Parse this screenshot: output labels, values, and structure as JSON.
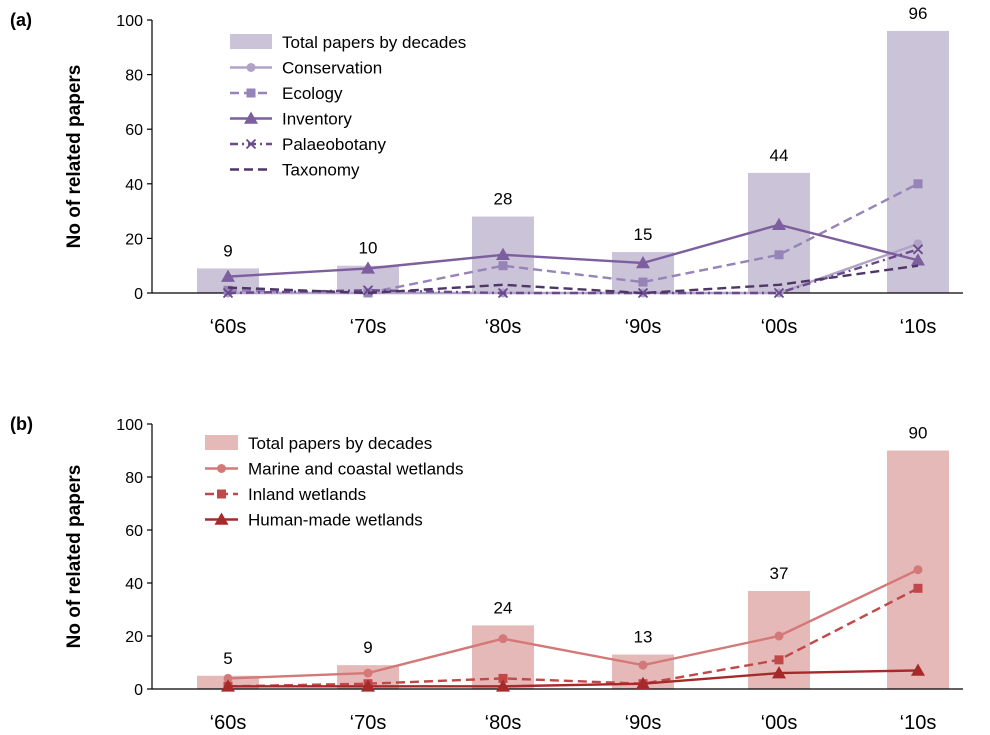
{
  "chart_data": [
    {
      "type": "bar",
      "panel_label": "(a)",
      "ylabel": "No of related papers",
      "xlabel": "",
      "categories": [
        "‘60s",
        "‘70s",
        "‘80s",
        "‘90s",
        "‘00s",
        "‘10s"
      ],
      "ylim": [
        0,
        100
      ],
      "yticks": [
        0,
        20,
        40,
        60,
        80,
        100
      ],
      "bar": {
        "name": "Total papers by decades",
        "values": [
          9,
          10,
          28,
          15,
          44,
          96
        ],
        "labels": [
          "9",
          "10",
          "28",
          "15",
          "44",
          "96"
        ],
        "color": "#cbc3d8"
      },
      "series": [
        {
          "name": "Conservation",
          "values": [
            0,
            0,
            0,
            0,
            0,
            18
          ],
          "color": "#b0a3c8",
          "dash": "solid",
          "marker": "circle"
        },
        {
          "name": "Ecology",
          "values": [
            1,
            0,
            10,
            4,
            14,
            40
          ],
          "color": "#9683b7",
          "dash": "dashed",
          "marker": "square"
        },
        {
          "name": "Inventory",
          "values": [
            6,
            9,
            14,
            11,
            25,
            12
          ],
          "color": "#7d5e9e",
          "dash": "solid",
          "marker": "triangle"
        },
        {
          "name": "Palaeobotany",
          "values": [
            0,
            1,
            0,
            0,
            0,
            16
          ],
          "color": "#6a4a8c",
          "dash": "dashdot",
          "marker": "x"
        },
        {
          "name": "Taxonomy",
          "values": [
            2,
            0,
            3,
            0,
            3,
            10
          ],
          "color": "#4e3666",
          "dash": "dashed",
          "marker": "none"
        }
      ],
      "legend_position": "top-left",
      "grid": false
    },
    {
      "type": "bar",
      "panel_label": "(b)",
      "ylabel": "No of related papers",
      "xlabel": "",
      "categories": [
        "‘60s",
        "‘70s",
        "‘80s",
        "‘90s",
        "‘00s",
        "‘10s"
      ],
      "ylim": [
        0,
        100
      ],
      "yticks": [
        0,
        20,
        40,
        60,
        80,
        100
      ],
      "bar": {
        "name": "Total papers by decades",
        "values": [
          5,
          9,
          24,
          13,
          37,
          90
        ],
        "labels": [
          "5",
          "9",
          "24",
          "13",
          "37",
          "90"
        ],
        "color": "#e6b9b9"
      },
      "series": [
        {
          "name": "Marine and coastal wetlands",
          "values": [
            4,
            6,
            19,
            9,
            20,
            45
          ],
          "color": "#d47878",
          "dash": "solid",
          "marker": "circle"
        },
        {
          "name": "Inland wetlands",
          "values": [
            1,
            2,
            4,
            2,
            11,
            38
          ],
          "color": "#c04848",
          "dash": "dashed",
          "marker": "square"
        },
        {
          "name": "Human-made wetlands",
          "values": [
            1,
            1,
            1,
            2,
            6,
            7
          ],
          "color": "#a52a2a",
          "dash": "solid",
          "marker": "triangle"
        }
      ],
      "legend_position": "top-left",
      "grid": false
    }
  ]
}
